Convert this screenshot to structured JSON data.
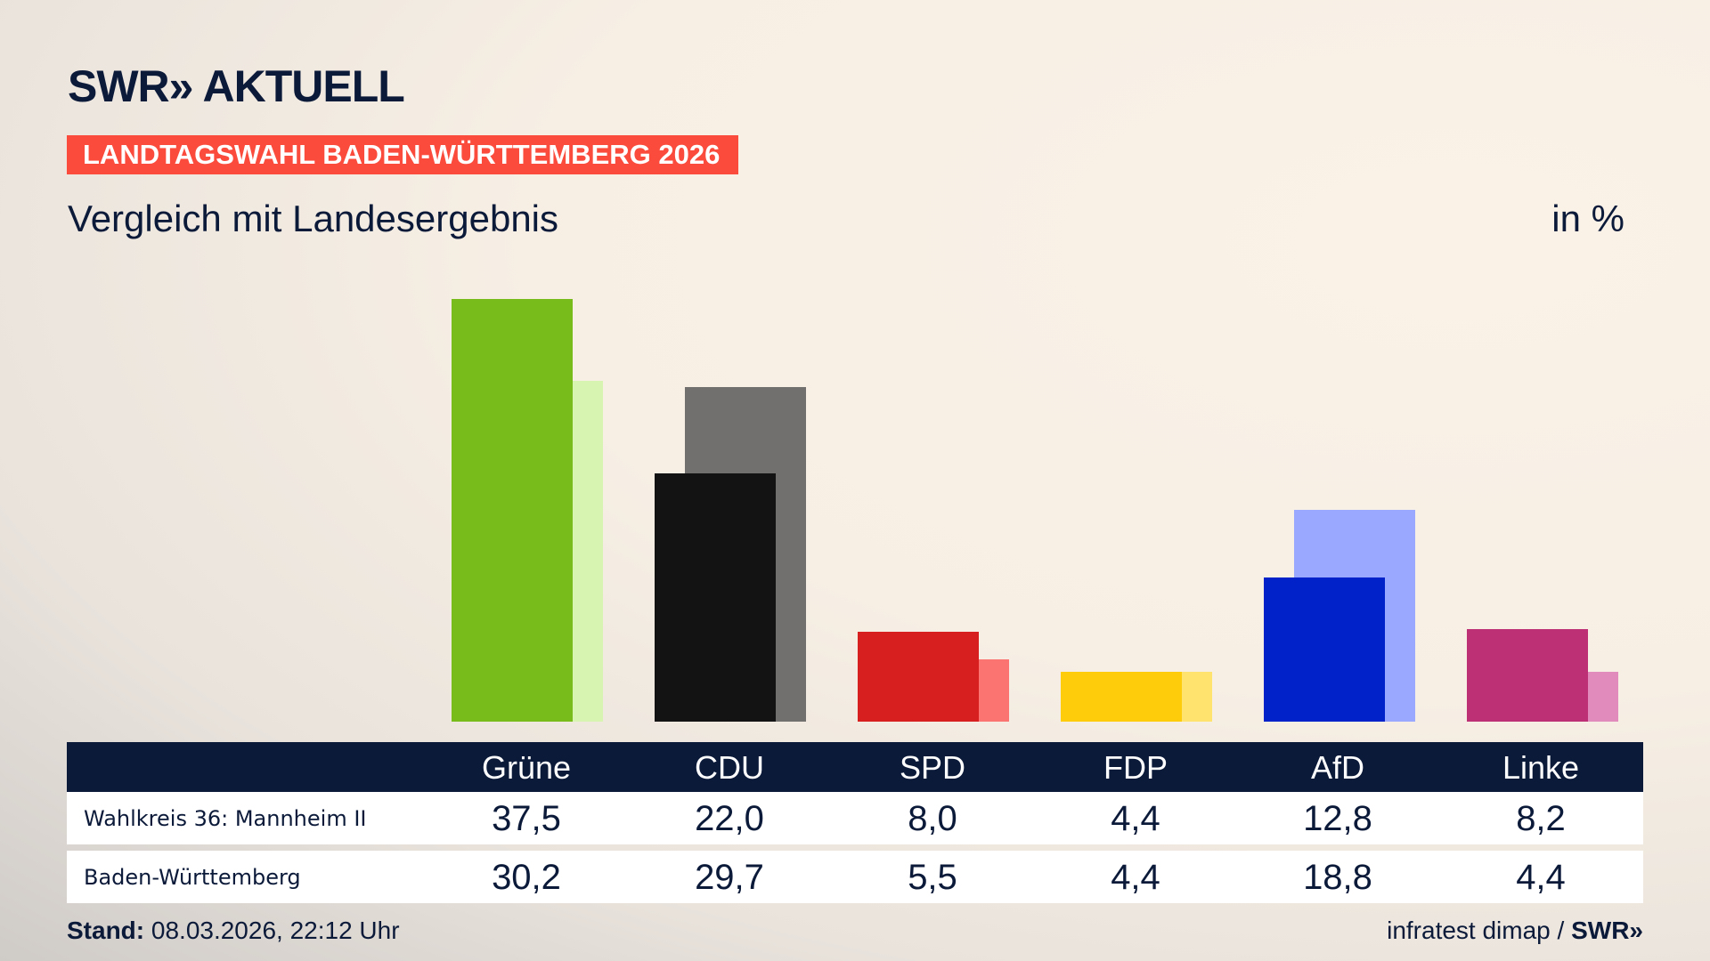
{
  "header": {
    "logo": "SWR» AKTUELL",
    "banner": "LANDTAGSWAHL BADEN-WÜRTTEMBERG 2026",
    "subtitle": "Vergleich mit Landesergebnis",
    "unit": "in %"
  },
  "chart_data": {
    "type": "bar",
    "categories": [
      "Grüne",
      "CDU",
      "SPD",
      "FDP",
      "AfD",
      "Linke"
    ],
    "series": [
      {
        "name": "Wahlkreis 36: Mannheim II",
        "values": [
          37.5,
          22.0,
          8.0,
          4.4,
          12.8,
          8.2
        ],
        "labels": [
          "37,5",
          "22,0",
          "8,0",
          "4,4",
          "12,8",
          "8,2"
        ]
      },
      {
        "name": "Baden-Württemberg",
        "values": [
          30.2,
          29.7,
          5.5,
          4.4,
          18.8,
          4.4
        ],
        "labels": [
          "30,2",
          "29,7",
          "5,5",
          "4,4",
          "18,8",
          "4,4"
        ]
      }
    ],
    "colors": {
      "primary": [
        "#78bc1b",
        "#131313",
        "#d81f1f",
        "#ffcc0c",
        "#0022c8",
        "#bd3075"
      ],
      "secondary": [
        "#d7f5b0",
        "#72706e",
        "#fc7471",
        "#ffe36e",
        "#9aa8ff",
        "#e08bbb"
      ]
    },
    "grid": false
  },
  "footer": {
    "stand_label": "Stand:",
    "stand_value": "08.03.2026, 22:12 Uhr",
    "source": "infratest dimap / ",
    "source_logo": "SWR»"
  }
}
